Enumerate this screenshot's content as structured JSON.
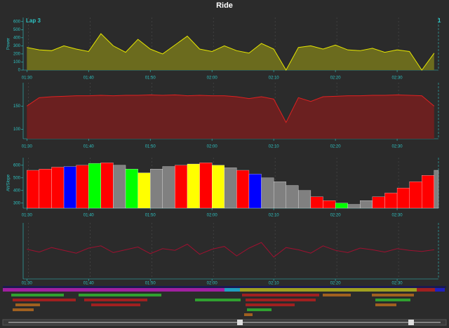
{
  "title": "Ride",
  "annotations": [
    "Lap 3",
    "1"
  ],
  "chart_data": [
    {
      "type": "area",
      "ylabel": "Power",
      "color": "#e8e800",
      "fill": "#6b6b1e",
      "x": [
        90,
        92,
        94,
        96,
        98,
        100,
        102,
        104,
        106,
        108,
        110,
        112,
        114,
        116,
        118,
        120,
        122,
        124,
        126,
        128,
        130,
        132,
        134,
        136,
        138,
        140,
        142,
        144,
        146,
        148,
        150,
        152,
        154,
        156
      ],
      "values": [
        280,
        250,
        240,
        300,
        260,
        230,
        450,
        300,
        220,
        380,
        260,
        200,
        310,
        420,
        260,
        230,
        300,
        240,
        210,
        330,
        260,
        0,
        280,
        300,
        260,
        310,
        250,
        240,
        270,
        220,
        250,
        230,
        0,
        210
      ],
      "xlim": [
        89.4,
        156.7
      ],
      "ylim": [
        0,
        650
      ],
      "yticks": [
        0,
        100,
        200,
        300,
        400,
        500,
        600
      ],
      "xticks": [
        {
          "value": 90,
          "label": "01:30"
        },
        {
          "value": 100,
          "label": "01:40"
        },
        {
          "value": 110,
          "label": "01:50"
        },
        {
          "value": 120,
          "label": "02:00"
        },
        {
          "value": 130,
          "label": "02:10"
        },
        {
          "value": 140,
          "label": "02:20"
        },
        {
          "value": 150,
          "label": "02:30"
        }
      ]
    },
    {
      "type": "area",
      "color": "#e02020",
      "fill": "#6b2020",
      "x": [
        90,
        92,
        94,
        96,
        98,
        100,
        102,
        104,
        106,
        108,
        110,
        112,
        114,
        116,
        118,
        120,
        122,
        124,
        126,
        128,
        130,
        132,
        134,
        136,
        138,
        140,
        142,
        144,
        146,
        148,
        150,
        152,
        154,
        156
      ],
      "values": [
        150,
        168,
        170,
        171,
        172,
        172,
        173,
        172,
        173,
        173,
        174,
        173,
        174,
        172,
        173,
        172,
        172,
        170,
        166,
        170,
        165,
        115,
        168,
        160,
        170,
        171,
        172,
        172,
        173,
        173,
        174,
        173,
        172,
        150
      ],
      "xlim": [
        89.4,
        156.7
      ],
      "ylim": [
        80,
        200
      ],
      "yticks": [
        100,
        150
      ],
      "xticks": [
        {
          "value": 90,
          "label": "01:30"
        },
        {
          "value": 100,
          "label": "01:40"
        },
        {
          "value": 110,
          "label": "01:50"
        },
        {
          "value": 120,
          "label": "02:00"
        },
        {
          "value": 130,
          "label": "02:10"
        },
        {
          "value": 140,
          "label": "02:20"
        },
        {
          "value": 150,
          "label": "02:30"
        }
      ]
    },
    {
      "type": "bar",
      "ylabel": "Alt/Slope",
      "x": [
        90,
        92,
        94,
        96,
        98,
        100,
        102,
        104,
        106,
        108,
        110,
        112,
        114,
        116,
        118,
        120,
        122,
        124,
        126,
        128,
        130,
        132,
        134,
        136,
        138,
        140,
        142,
        144,
        146,
        148,
        150,
        152,
        154,
        156
      ],
      "values": [
        560,
        570,
        585,
        590,
        600,
        615,
        620,
        600,
        570,
        540,
        570,
        590,
        600,
        610,
        620,
        600,
        580,
        560,
        530,
        500,
        470,
        440,
        400,
        350,
        320,
        300,
        290,
        320,
        350,
        380,
        420,
        470,
        520,
        560
      ],
      "colors": [
        "#ff0000",
        "#ff0000",
        "#ff0000",
        "#0000ff",
        "#ff0000",
        "#00ff00",
        "#ff0000",
        "#808080",
        "#00ff00",
        "#ffff00",
        "#808080",
        "#808080",
        "#ff0000",
        "#ffff00",
        "#ff0000",
        "#ffff00",
        "#808080",
        "#ff0000",
        "#0000ff",
        "#808080",
        "#808080",
        "#808080",
        "#808080",
        "#ff0000",
        "#ff0000",
        "#00ff00",
        "#808080",
        "#808080",
        "#ff0000",
        "#ff0000",
        "#ff0000",
        "#ff0000",
        "#ff0000",
        "#808080"
      ],
      "xlim": [
        89.4,
        156.7
      ],
      "ylim": [
        260,
        660
      ],
      "yticks": [
        300,
        400,
        500,
        600
      ],
      "xticks": [
        {
          "value": 90,
          "label": "01:30"
        },
        {
          "value": 100,
          "label": "01:40"
        },
        {
          "value": 110,
          "label": "01:50"
        },
        {
          "value": 120,
          "label": "02:00"
        },
        {
          "value": 130,
          "label": "02:10"
        },
        {
          "value": 140,
          "label": "02:20"
        },
        {
          "value": 150,
          "label": "02:30"
        }
      ]
    },
    {
      "type": "line",
      "color": "#a01030",
      "x": [
        90,
        92,
        94,
        96,
        98,
        100,
        102,
        104,
        106,
        108,
        110,
        112,
        114,
        116,
        118,
        120,
        122,
        124,
        126,
        128,
        130,
        132,
        134,
        136,
        138,
        140,
        142,
        144,
        146,
        148,
        150,
        152,
        154,
        156
      ],
      "values": [
        0.3,
        -0.2,
        0.6,
        0.1,
        -0.4,
        0.5,
        0.9,
        -0.3,
        0.2,
        0.7,
        -0.5,
        0.4,
        0.1,
        1.2,
        -0.6,
        0.3,
        0.8,
        -0.9,
        0.5,
        1.5,
        -1.1,
        0.6,
        0.2,
        -0.4,
        0.9,
        0.1,
        -0.3,
        0.5,
        0.2,
        -0.2,
        0.4,
        0.1,
        -0.1,
        0.2
      ],
      "xlim": [
        89.4,
        156.7
      ],
      "ylim": [
        -5,
        5
      ],
      "xticks": [
        {
          "value": 90,
          "label": "01:30"
        },
        {
          "value": 100,
          "label": "01:40"
        },
        {
          "value": 110,
          "label": "01:50"
        },
        {
          "value": 120,
          "label": "02:00"
        },
        {
          "value": 130,
          "label": "02:10"
        },
        {
          "value": 140,
          "label": "02:20"
        },
        {
          "value": 150,
          "label": "02:30"
        }
      ]
    }
  ]
}
